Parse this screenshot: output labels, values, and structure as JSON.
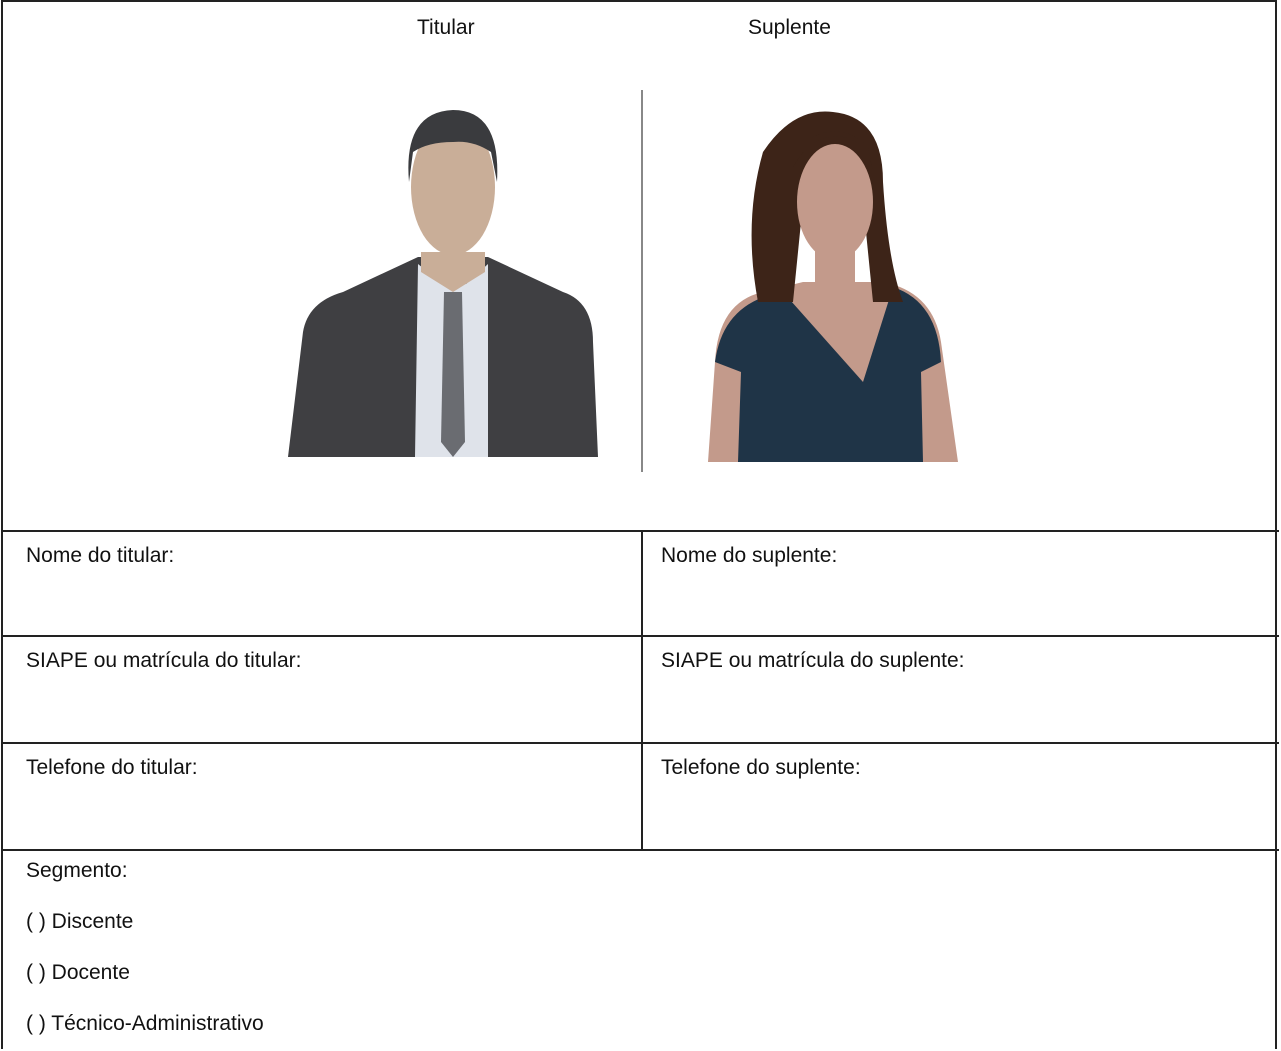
{
  "header": {
    "titular": "Titular",
    "suplente": "Suplente"
  },
  "table": {
    "rows": [
      [
        "Nome do titular:",
        "Nome do suplente:"
      ],
      [
        "SIAPE ou matrícula do titular:",
        "SIAPE ou matrícula do suplente:"
      ],
      [
        "Telefone do titular:",
        "Telefone do suplente:"
      ]
    ]
  },
  "segment": {
    "label": "Segmento:",
    "options": [
      "( ) Discente",
      "( ) Docente",
      "( ) Técnico-Administrativo"
    ]
  }
}
